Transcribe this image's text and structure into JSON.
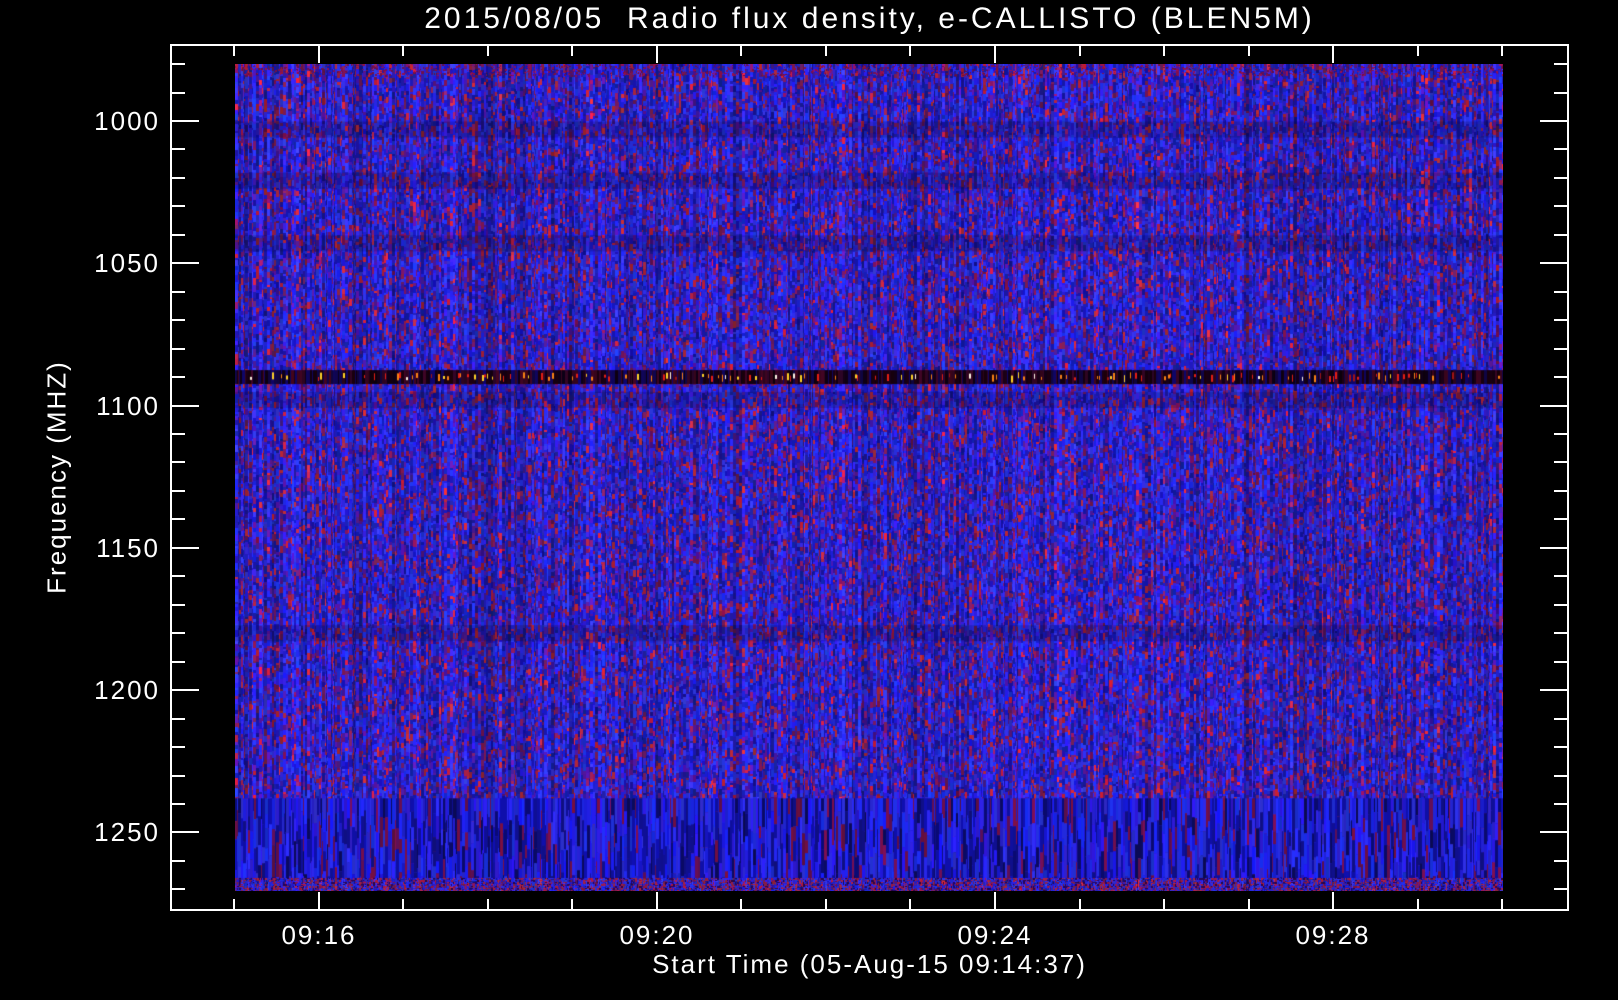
{
  "page": {
    "background": "#000000"
  },
  "title": "2015/08/05  Radio flux density, e-CALLISTO (BLEN5M)",
  "chart_data": {
    "type": "heatmap",
    "title": "2015/08/05  Radio flux density, e-CALLISTO (BLEN5M)",
    "xlabel": "Start Time (05-Aug-15 09:14:37)",
    "ylabel": "Frequency (MHZ)",
    "date": "2015/08/05",
    "instrument": "e-CALLISTO (BLEN5M)",
    "start_time": "05-Aug-15 09:14:37",
    "x_major_ticks": [
      {
        "label": "09:16",
        "minutes": 16
      },
      {
        "label": "09:20",
        "minutes": 20
      },
      {
        "label": "09:24",
        "minutes": 24
      },
      {
        "label": "09:28",
        "minutes": 28
      }
    ],
    "x_minor_tick_minutes": [
      15,
      16,
      17,
      18,
      19,
      20,
      21,
      22,
      23,
      24,
      25,
      26,
      27,
      28,
      29,
      30
    ],
    "xlim_minutes_after_0900": [
      14.25,
      30.78
    ],
    "y_major_ticks": [
      {
        "label": "1000",
        "mhz": 1000
      },
      {
        "label": "1050",
        "mhz": 1050
      },
      {
        "label": "1100",
        "mhz": 1100
      },
      {
        "label": "1150",
        "mhz": 1150
      },
      {
        "label": "1200",
        "mhz": 1200
      },
      {
        "label": "1250",
        "mhz": 1250
      }
    ],
    "y_minor_tick_mhz": [
      980,
      990,
      1000,
      1010,
      1020,
      1030,
      1040,
      1050,
      1060,
      1070,
      1080,
      1090,
      1100,
      1110,
      1120,
      1130,
      1140,
      1150,
      1160,
      1170,
      1180,
      1190,
      1200,
      1210,
      1220,
      1230,
      1240,
      1250,
      1260,
      1270
    ],
    "ylim_mhz": [
      973.3,
      1276.9
    ],
    "y_axis_direction": "inverted (frequency increases downward)",
    "image_extent": {
      "time": [
        "09:15",
        "09:30"
      ],
      "freq_mhz": [
        980,
        1270
      ]
    },
    "features": [
      {
        "name": "rfi-interference-line",
        "freq_mhz": 1090,
        "description": "narrow horizontal dark band filled with bright red/orange/yellow/white dashes across full time span"
      },
      {
        "name": "bottom-striped-band",
        "freq_range_mhz": [
          1238,
          1266
        ],
        "description": "band of long vertical blue stripes"
      },
      {
        "name": "bottom-edge-speckle",
        "freq_range_mhz": [
          1266,
          1270
        ],
        "description": "dense red/maroon speckle row at lower image edge"
      },
      {
        "name": "faint-dark-bands",
        "freq_mhz": [
          1003,
          1021,
          1043,
          1098,
          1180
        ],
        "description": "very subtle darker horizontal striations in the blue noise"
      }
    ],
    "colors": {
      "background": "#000000",
      "axis": "#ffffff",
      "text": "#ffffff",
      "noise_blue_bright": "#2a2ae8",
      "noise_blue_mid": "#1c1cb4",
      "noise_indigo": "#4a1f9e",
      "noise_maroon": "#7c1a45",
      "noise_red": "#b02232",
      "line_dash_colors": [
        "#e61e14",
        "#fa8214",
        "#ffd228",
        "#fff5e6"
      ]
    }
  }
}
